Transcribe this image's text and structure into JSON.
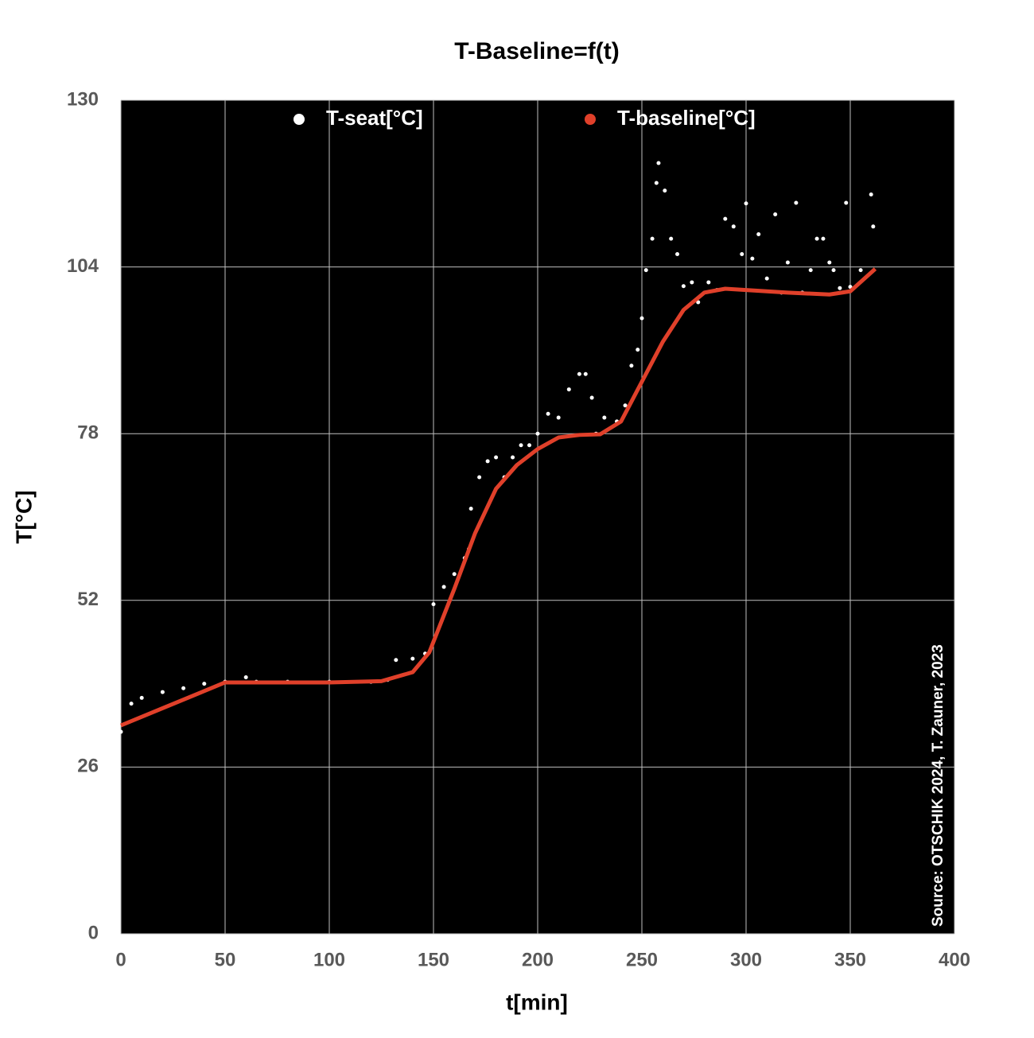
{
  "chart_data": {
    "type": "scatter",
    "title": "T-Baseline=f(t)",
    "x_label": "t[min]",
    "y_label": "T[°C]",
    "annotation": "Source: OTSCHIK 2024, T. Zauner, 2023",
    "xlim": [
      0,
      400
    ],
    "xticks": [
      0,
      50,
      100,
      150,
      200,
      250,
      300,
      350,
      400
    ],
    "ylim": [
      0,
      130
    ],
    "yticks": [
      0,
      26,
      52,
      78,
      104,
      130
    ],
    "grid": true,
    "legend": "top",
    "background": "#000000",
    "series": [
      {
        "name": "T-seat[°C]",
        "color": "#ffffff",
        "style": "markers",
        "x": [
          0,
          5,
          10,
          20,
          30,
          40,
          50,
          60,
          65,
          80,
          100,
          120,
          128,
          132,
          140,
          146,
          150,
          155,
          160,
          165,
          167,
          168,
          172,
          176,
          180,
          184,
          188,
          192,
          196,
          200,
          205,
          210,
          215,
          220,
          223,
          226,
          228,
          232,
          238,
          242,
          245,
          248,
          250,
          252,
          255,
          257,
          258,
          261,
          264,
          267,
          270,
          274,
          277,
          282,
          286,
          290,
          294,
          298,
          300,
          303,
          306,
          310,
          314,
          317,
          320,
          324,
          327,
          331,
          334,
          337,
          340,
          342,
          345,
          348,
          350,
          355,
          360,
          361
        ],
        "values": [
          31.5,
          35.9,
          36.8,
          37.7,
          38.3,
          39,
          39.3,
          40,
          39.3,
          39.3,
          39.3,
          39.3,
          39.6,
          42.7,
          42.9,
          43.7,
          51.4,
          54.1,
          56.1,
          58.6,
          60,
          66.3,
          71.2,
          73.7,
          74.3,
          71.2,
          74.3,
          76.2,
          76.2,
          78,
          81.1,
          80.5,
          84.9,
          87.3,
          87.3,
          83.6,
          78,
          80.5,
          79.9,
          82.4,
          88.6,
          91.1,
          96,
          103.5,
          108.4,
          117.1,
          120.2,
          115.9,
          108.4,
          106,
          101,
          101.6,
          98.5,
          101.6,
          100.4,
          111.5,
          110.3,
          106,
          113.9,
          105.3,
          109.1,
          102.2,
          112.2,
          100,
          104.7,
          114,
          100,
          103.5,
          108.4,
          108.4,
          104.7,
          103.5,
          100.7,
          114,
          100.9,
          103.5,
          115.3,
          110.3
        ]
      },
      {
        "name": "T-baseline[°C]",
        "color": "#e0402a",
        "style": "line",
        "x": [
          0,
          50,
          100,
          125,
          140,
          148,
          160,
          170,
          180,
          190,
          200,
          210,
          220,
          230,
          240,
          250,
          260,
          270,
          280,
          290,
          300,
          320,
          340,
          350,
          362
        ],
        "values": [
          32.5,
          39.2,
          39.2,
          39.4,
          40.8,
          43.9,
          53.8,
          62.5,
          69.4,
          73.1,
          75.6,
          77.4,
          77.8,
          77.9,
          79.9,
          86.1,
          92.3,
          97.3,
          100,
          100.6,
          100.4,
          100,
          99.7,
          100.2,
          103.7
        ]
      }
    ]
  }
}
